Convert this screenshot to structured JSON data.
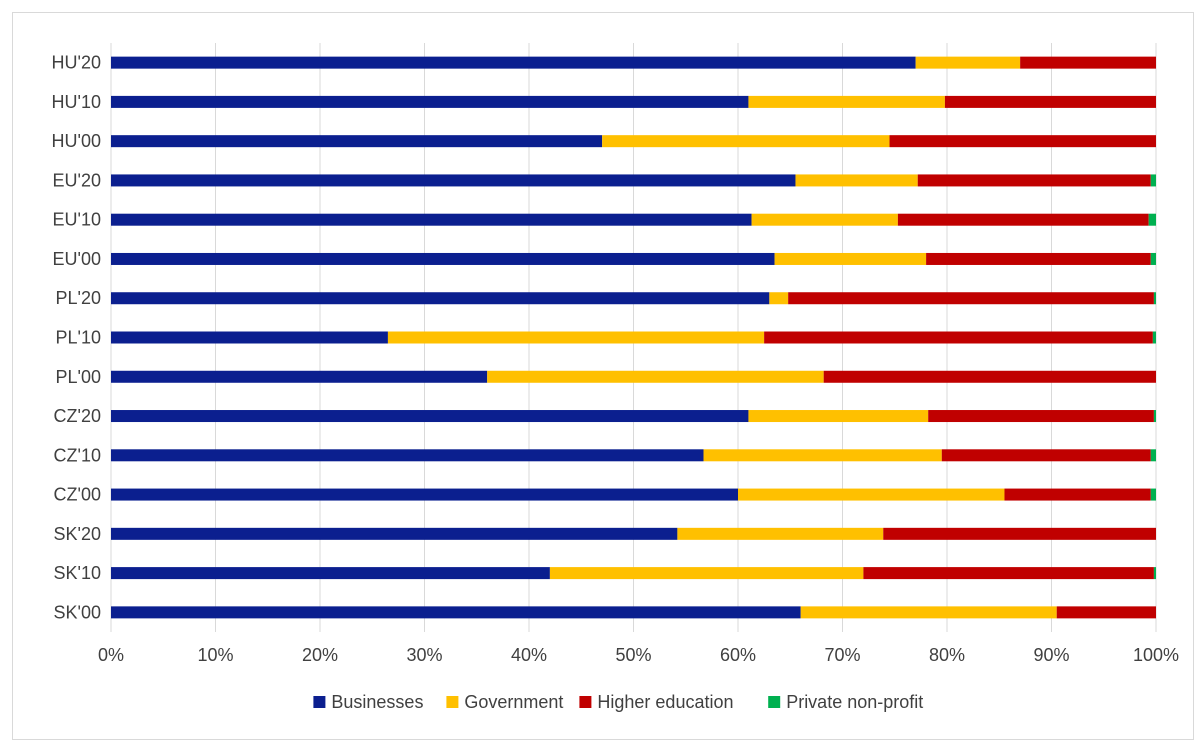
{
  "chart_data": {
    "type": "bar",
    "orientation": "horizontal",
    "stacked": "percent",
    "categories": [
      "HU'20",
      "HU'10",
      "HU'00",
      "EU'20",
      "EU'10",
      "EU'00",
      "PL'20",
      "PL'10",
      "PL'00",
      "CZ'20",
      "CZ'10",
      "CZ'00",
      "SK'20",
      "SK'10",
      "SK'00"
    ],
    "series": [
      {
        "name": "Businesses",
        "color": "#0b1f8f",
        "values": [
          77.0,
          61.0,
          47.0,
          65.5,
          61.3,
          63.5,
          63.0,
          26.5,
          36.0,
          61.0,
          56.7,
          60.0,
          54.2,
          42.0,
          66.0
        ]
      },
      {
        "name": "Government",
        "color": "#ffc000",
        "values": [
          10.0,
          18.8,
          27.5,
          11.7,
          14.0,
          14.5,
          1.8,
          36.0,
          32.2,
          17.2,
          22.8,
          25.5,
          19.7,
          30.0,
          24.5
        ]
      },
      {
        "name": "Higher education",
        "color": "#c00000",
        "values": [
          13.0,
          20.2,
          25.5,
          22.3,
          24.0,
          21.5,
          35.0,
          37.2,
          31.8,
          21.6,
          20.0,
          14.0,
          26.1,
          27.8,
          9.5
        ]
      },
      {
        "name": "Private non-profit",
        "color": "#00b050",
        "values": [
          0.0,
          0.0,
          0.0,
          0.5,
          0.7,
          0.5,
          0.2,
          0.3,
          0.0,
          0.2,
          0.5,
          0.5,
          0.0,
          0.2,
          0.0
        ]
      }
    ],
    "x_ticks": [
      "0%",
      "10%",
      "20%",
      "30%",
      "40%",
      "50%",
      "60%",
      "70%",
      "80%",
      "90%",
      "100%"
    ],
    "xlim": [
      0,
      100
    ],
    "grid": "vertical",
    "legend_position": "bottom"
  }
}
